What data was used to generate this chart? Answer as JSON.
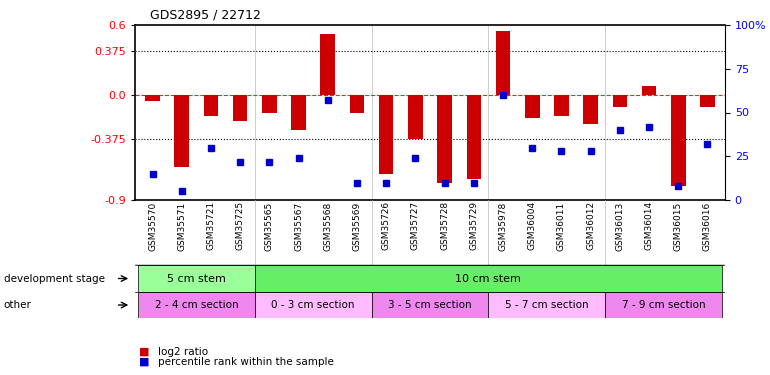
{
  "title": "GDS2895 / 22712",
  "samples": [
    "GSM35570",
    "GSM35571",
    "GSM35721",
    "GSM35725",
    "GSM35565",
    "GSM35567",
    "GSM35568",
    "GSM35569",
    "GSM35726",
    "GSM35727",
    "GSM35728",
    "GSM35729",
    "GSM35978",
    "GSM36004",
    "GSM36011",
    "GSM36012",
    "GSM36013",
    "GSM36014",
    "GSM36015",
    "GSM36016"
  ],
  "log2_ratio": [
    -0.05,
    -0.62,
    -0.18,
    -0.22,
    -0.15,
    -0.3,
    0.52,
    -0.15,
    -0.68,
    -0.38,
    -0.75,
    -0.72,
    0.55,
    -0.2,
    -0.18,
    -0.25,
    -0.1,
    0.08,
    -0.78,
    -0.1
  ],
  "percentile_rank": [
    15,
    5,
    30,
    22,
    22,
    24,
    57,
    10,
    10,
    24,
    10,
    10,
    60,
    30,
    28,
    28,
    40,
    42,
    8,
    32
  ],
  "ylim_left": [
    -0.9,
    0.6
  ],
  "ylim_right": [
    0,
    100
  ],
  "yticks_left": [
    -0.9,
    -0.375,
    0.0,
    0.375,
    0.6
  ],
  "yticks_right": [
    0,
    25,
    50,
    75,
    100
  ],
  "hlines_dotted": [
    0.375,
    -0.375
  ],
  "hline_dash": 0.0,
  "bar_color": "#cc0000",
  "dot_color": "#0000cc",
  "bar_width": 0.5,
  "development_stage_groups": [
    {
      "label": "5 cm stem",
      "start": 0,
      "end": 3,
      "color": "#99ff99"
    },
    {
      "label": "10 cm stem",
      "start": 4,
      "end": 19,
      "color": "#66ee66"
    }
  ],
  "other_groups": [
    {
      "label": "2 - 4 cm section",
      "start": 0,
      "end": 3,
      "color": "#ee88ee"
    },
    {
      "label": "0 - 3 cm section",
      "start": 4,
      "end": 7,
      "color": "#ffbbff"
    },
    {
      "label": "3 - 5 cm section",
      "start": 8,
      "end": 11,
      "color": "#ee88ee"
    },
    {
      "label": "5 - 7 cm section",
      "start": 12,
      "end": 15,
      "color": "#ffbbff"
    },
    {
      "label": "7 - 9 cm section",
      "start": 16,
      "end": 19,
      "color": "#ee88ee"
    }
  ],
  "dev_stage_label": "development stage",
  "other_label": "other",
  "legend_log2": "log2 ratio",
  "legend_pct": "percentile rank within the sample",
  "fig_width": 7.7,
  "fig_height": 3.75,
  "bg_color": "#ffffff"
}
